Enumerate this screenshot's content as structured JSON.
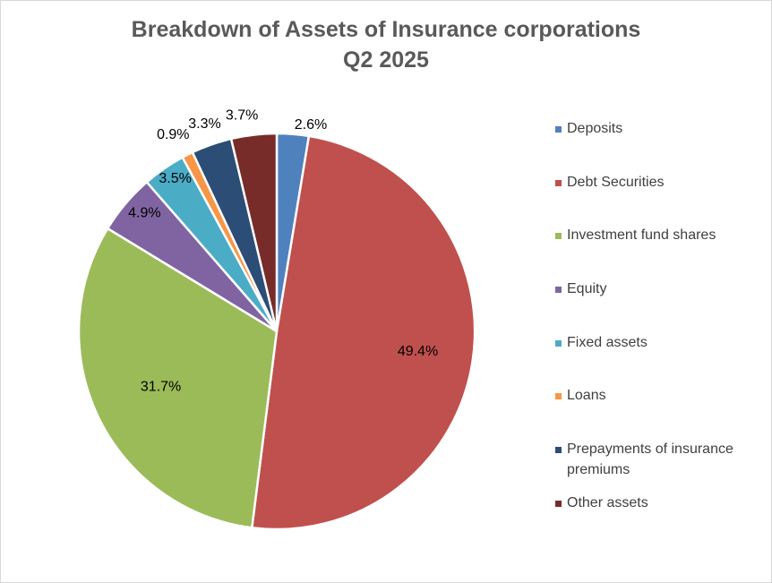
{
  "chart_data": {
    "type": "pie",
    "title": "Breakdown of Assets of Insurance corporations",
    "subtitle": "Q2 2025",
    "legend_position": "right",
    "slices": [
      {
        "label": "Deposits",
        "value": 2.6,
        "display": "2.6%",
        "color": "#4f81bd"
      },
      {
        "label": "Debt Securities",
        "value": 49.4,
        "display": "49.4%",
        "color": "#c0504d"
      },
      {
        "label": "Investment fund shares",
        "value": 31.7,
        "display": "31.7%",
        "color": "#9bbb59"
      },
      {
        "label": "Equity",
        "value": 4.9,
        "display": "4.9%",
        "color": "#8064a2"
      },
      {
        "label": "Fixed assets",
        "value": 3.5,
        "display": "3.5%",
        "color": "#4bacc6"
      },
      {
        "label": "Loans",
        "value": 0.9,
        "display": "0.9%",
        "color": "#f79646"
      },
      {
        "label": "Prepayments of insurance premiums",
        "value": 3.3,
        "display": "3.3%",
        "color": "#2c4d75"
      },
      {
        "label": "Other assets",
        "value": 3.7,
        "display": "3.7%",
        "color": "#772c2a"
      }
    ]
  }
}
